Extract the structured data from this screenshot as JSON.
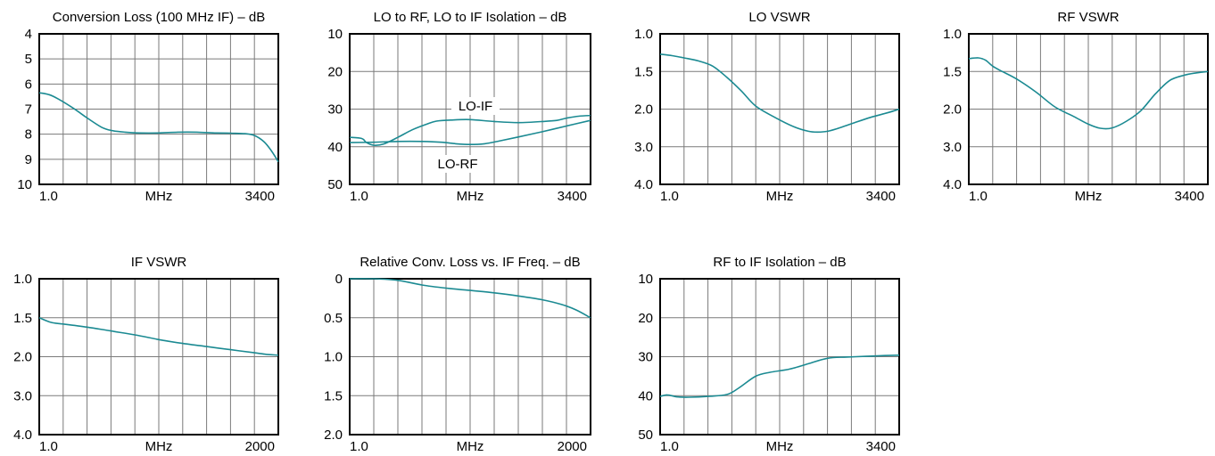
{
  "colors": {
    "curve": "#1b8a92",
    "grid": "#7a7a7a",
    "frame": "#000000"
  },
  "chart_data": [
    {
      "type": "line",
      "title": "Conversion Loss (100 MHz IF) – dB",
      "xlabel": "MHz",
      "x_tick_labels": [
        "1.0",
        "3400"
      ],
      "y_tick_labels": [
        "4",
        "5",
        "6",
        "7",
        "8",
        "9",
        "10"
      ],
      "ylim": [
        4,
        10
      ],
      "y_inverted": true,
      "xlim": [
        0,
        1
      ],
      "grid": true,
      "series": [
        {
          "x": [
            0,
            0.04,
            0.08,
            0.14,
            0.2,
            0.26,
            0.3,
            0.36,
            0.42,
            0.5,
            0.58,
            0.66,
            0.74,
            0.8,
            0.86,
            0.9,
            0.94,
            0.97,
            1.0
          ],
          "y": [
            6.35,
            6.42,
            6.6,
            6.95,
            7.35,
            7.72,
            7.85,
            7.92,
            7.95,
            7.95,
            7.92,
            7.92,
            7.95,
            7.96,
            7.98,
            8.05,
            8.3,
            8.65,
            9.1
          ]
        }
      ]
    },
    {
      "type": "line",
      "title": "LO to RF, LO to IF Isolation – dB",
      "xlabel": "MHz",
      "x_tick_labels": [
        "1.0",
        "3400"
      ],
      "y_tick_labels": [
        "10",
        "20",
        "30",
        "40",
        "50"
      ],
      "ylim": [
        10,
        50
      ],
      "y_inverted": true,
      "xlim": [
        0,
        1
      ],
      "grid": true,
      "annotations": [
        "LO-IF",
        "LO-RF"
      ],
      "series": [
        {
          "name": "LO-IF",
          "x": [
            0,
            0.05,
            0.07,
            0.1,
            0.14,
            0.2,
            0.26,
            0.32,
            0.36,
            0.42,
            0.5,
            0.6,
            0.7,
            0.8,
            0.86,
            0.9,
            0.95,
            1.0
          ],
          "y": [
            37.5,
            37.8,
            38.9,
            39.6,
            39.3,
            37.5,
            35.5,
            34,
            33.2,
            32.9,
            32.8,
            33.3,
            33.6,
            33.3,
            33,
            32.4,
            31.9,
            31.7
          ]
        },
        {
          "name": "LO-RF",
          "x": [
            0,
            0.1,
            0.2,
            0.3,
            0.38,
            0.44,
            0.5,
            0.56,
            0.62,
            0.7,
            0.8,
            0.9,
            1.0
          ],
          "y": [
            38.9,
            38.8,
            38.6,
            38.6,
            38.8,
            39.2,
            39.4,
            39.2,
            38.5,
            37.4,
            36,
            34.5,
            33
          ]
        }
      ]
    },
    {
      "type": "line",
      "title": "LO VSWR",
      "xlabel": "",
      "x_axis_center_label": "MHz",
      "x_tick_labels": [
        "1.0",
        "3400"
      ],
      "y_tick_labels": [
        "1.0",
        "1.5",
        "2.0",
        "3.0",
        "4.0"
      ],
      "y_scale": "vswr",
      "ylim": [
        1.0,
        4.0
      ],
      "y_inverted": true,
      "xlim": [
        0,
        1
      ],
      "grid": true,
      "series": [
        {
          "x": [
            0,
            0.05,
            0.1,
            0.16,
            0.22,
            0.28,
            0.34,
            0.4,
            0.48,
            0.56,
            0.62,
            0.66,
            0.7,
            0.74,
            0.8,
            0.88,
            0.95,
            1.0
          ],
          "y": [
            1.27,
            1.29,
            1.32,
            1.36,
            1.43,
            1.58,
            1.76,
            1.96,
            2.22,
            2.47,
            2.59,
            2.61,
            2.59,
            2.52,
            2.39,
            2.22,
            2.1,
            2.0
          ]
        }
      ]
    },
    {
      "type": "line",
      "title": "RF VSWR",
      "x_axis_center_label": "MHz",
      "x_tick_labels": [
        "1.0",
        "3400"
      ],
      "y_tick_labels": [
        "1.0",
        "1.5",
        "2.0",
        "3.0",
        "4.0"
      ],
      "y_scale": "vswr",
      "ylim": [
        1.0,
        4.0
      ],
      "y_inverted": true,
      "xlim": [
        0,
        1
      ],
      "grid": true,
      "series": [
        {
          "x": [
            0,
            0.04,
            0.07,
            0.1,
            0.14,
            0.2,
            0.28,
            0.36,
            0.44,
            0.5,
            0.55,
            0.6,
            0.66,
            0.72,
            0.78,
            0.84,
            0.9,
            0.95,
            1.0
          ],
          "y": [
            1.33,
            1.32,
            1.35,
            1.43,
            1.5,
            1.6,
            1.77,
            1.97,
            2.2,
            2.4,
            2.51,
            2.5,
            2.32,
            2.04,
            1.8,
            1.62,
            1.55,
            1.52,
            1.5
          ]
        }
      ]
    },
    {
      "type": "line",
      "title": "IF VSWR",
      "x_axis_center_label": "MHz",
      "x_tick_labels": [
        "1.0",
        "2000"
      ],
      "y_tick_labels": [
        "1.0",
        "1.5",
        "2.0",
        "3.0",
        "4.0"
      ],
      "y_scale": "vswr",
      "ylim": [
        1.0,
        4.0
      ],
      "y_inverted": true,
      "xlim": [
        0,
        1
      ],
      "grid": true,
      "series": [
        {
          "x": [
            0,
            0.05,
            0.1,
            0.2,
            0.3,
            0.4,
            0.5,
            0.6,
            0.7,
            0.8,
            0.9,
            0.95,
            1.0
          ],
          "y": [
            1.5,
            1.56,
            1.58,
            1.62,
            1.67,
            1.72,
            1.78,
            1.83,
            1.87,
            1.91,
            1.95,
            1.97,
            1.98
          ]
        }
      ]
    },
    {
      "type": "line",
      "title": "Relative Conv. Loss vs. IF Freq. – dB",
      "x_axis_center_label": "MHz",
      "x_tick_labels": [
        "1.0",
        "2000"
      ],
      "y_tick_labels": [
        "0",
        "0.5",
        "1.0",
        "1.5",
        "2.0"
      ],
      "ylim": [
        0,
        2.0
      ],
      "y_inverted": true,
      "xlim": [
        0,
        1
      ],
      "grid": true,
      "series": [
        {
          "x": [
            0,
            0.1,
            0.2,
            0.3,
            0.4,
            0.5,
            0.6,
            0.7,
            0.8,
            0.88,
            0.94,
            1.0
          ],
          "y": [
            0,
            0.0,
            0.02,
            0.08,
            0.12,
            0.15,
            0.18,
            0.22,
            0.27,
            0.33,
            0.4,
            0.5
          ]
        }
      ]
    },
    {
      "type": "line",
      "title": "RF to IF Isolation – dB",
      "x_axis_center_label": "MHz",
      "x_tick_labels": [
        "1.0",
        "3400"
      ],
      "y_tick_labels": [
        "10",
        "20",
        "30",
        "40",
        "50"
      ],
      "ylim": [
        10,
        50
      ],
      "y_inverted": true,
      "xlim": [
        0,
        1
      ],
      "grid": true,
      "series": [
        {
          "x": [
            0,
            0.03,
            0.07,
            0.12,
            0.2,
            0.28,
            0.33,
            0.4,
            0.46,
            0.54,
            0.62,
            0.7,
            0.78,
            0.86,
            0.94,
            1.0
          ],
          "y": [
            40.2,
            39.8,
            40.3,
            40.4,
            40.2,
            39.7,
            38,
            35,
            34,
            33.2,
            31.8,
            30.4,
            30.1,
            29.9,
            29.7,
            29.6
          ]
        }
      ]
    }
  ]
}
